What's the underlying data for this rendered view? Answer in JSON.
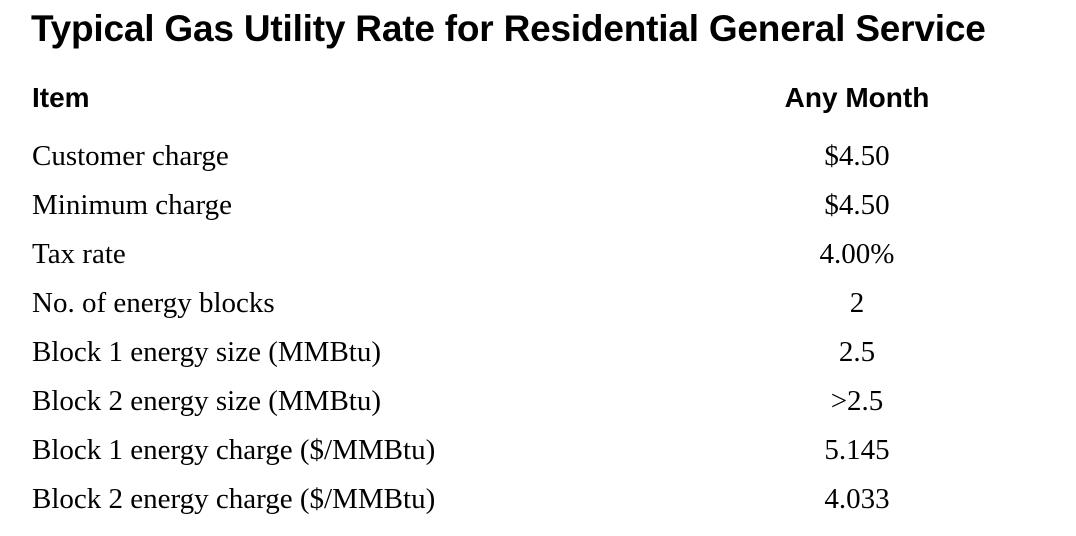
{
  "title": "Typical Gas Utility Rate for Residential General Service",
  "table": {
    "headers": [
      "Item",
      "Any Month"
    ],
    "rows": [
      {
        "item": "Customer charge",
        "value": "$4.50"
      },
      {
        "item": "Minimum charge",
        "value": "$4.50"
      },
      {
        "item": "Tax rate",
        "value": "4.00%"
      },
      {
        "item": "No. of energy blocks",
        "value": "2"
      },
      {
        "item": "Block 1 energy size (MMBtu)",
        "value": "2.5"
      },
      {
        "item": "Block 2 energy size (MMBtu)",
        "value": ">2.5"
      },
      {
        "item": "Block 1 energy charge ($/MMBtu)",
        "value": "5.145"
      },
      {
        "item": "Block 2 energy charge ($/MMBtu)",
        "value": "4.033"
      }
    ]
  }
}
